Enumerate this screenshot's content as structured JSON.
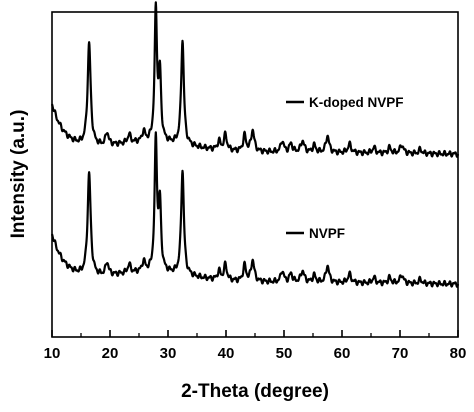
{
  "chart_data": {
    "type": "line",
    "xlabel": "2-Theta (degree)",
    "ylabel": "Intensity (a.u.)",
    "xlim": [
      10,
      80
    ],
    "x_ticks": [
      "10",
      "20",
      "30",
      "40",
      "50",
      "60",
      "70",
      "80"
    ],
    "y_ticks_labeled": false,
    "grid": false,
    "legend_placement": "inline-right",
    "peaks": [
      {
        "pos": 16.4,
        "h": 0.72,
        "w": 0.32
      },
      {
        "pos": 19.5,
        "h": 0.09,
        "w": 0.3
      },
      {
        "pos": 23.3,
        "h": 0.06,
        "w": 0.3
      },
      {
        "pos": 25.8,
        "h": 0.07,
        "w": 0.3
      },
      {
        "pos": 27.9,
        "h": 0.92,
        "w": 0.25
      },
      {
        "pos": 28.6,
        "h": 0.46,
        "w": 0.25
      },
      {
        "pos": 32.5,
        "h": 0.74,
        "w": 0.28
      },
      {
        "pos": 38.8,
        "h": 0.06,
        "w": 0.3
      },
      {
        "pos": 39.9,
        "h": 0.11,
        "w": 0.3
      },
      {
        "pos": 43.2,
        "h": 0.11,
        "w": 0.3
      },
      {
        "pos": 44.6,
        "h": 0.15,
        "w": 0.32
      },
      {
        "pos": 49.7,
        "h": 0.08,
        "w": 0.3
      },
      {
        "pos": 51.2,
        "h": 0.06,
        "w": 0.3
      },
      {
        "pos": 53.2,
        "h": 0.08,
        "w": 0.35
      },
      {
        "pos": 55.2,
        "h": 0.05,
        "w": 0.3
      },
      {
        "pos": 57.5,
        "h": 0.12,
        "w": 0.32
      },
      {
        "pos": 61.3,
        "h": 0.06,
        "w": 0.35
      },
      {
        "pos": 65.5,
        "h": 0.04,
        "w": 0.3
      },
      {
        "pos": 68.2,
        "h": 0.04,
        "w": 0.3
      },
      {
        "pos": 70.3,
        "h": 0.06,
        "w": 0.35
      },
      {
        "pos": 73.5,
        "h": 0.03,
        "w": 0.3
      }
    ],
    "series": [
      {
        "name": "K-doped NVPF",
        "offset": 1.0,
        "color": "#000000"
      },
      {
        "name": "NVPF",
        "offset": 0.0,
        "color": "#000000"
      }
    ]
  }
}
